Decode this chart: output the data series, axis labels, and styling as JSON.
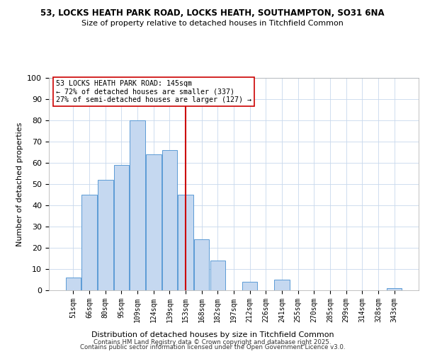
{
  "title1": "53, LOCKS HEATH PARK ROAD, LOCKS HEATH, SOUTHAMPTON, SO31 6NA",
  "title2": "Size of property relative to detached houses in Titchfield Common",
  "xlabel": "Distribution of detached houses by size in Titchfield Common",
  "ylabel": "Number of detached properties",
  "bar_labels": [
    "51sqm",
    "66sqm",
    "80sqm",
    "95sqm",
    "109sqm",
    "124sqm",
    "139sqm",
    "153sqm",
    "168sqm",
    "182sqm",
    "197sqm",
    "212sqm",
    "226sqm",
    "241sqm",
    "255sqm",
    "270sqm",
    "285sqm",
    "299sqm",
    "314sqm",
    "328sqm",
    "343sqm"
  ],
  "bar_heights": [
    6,
    45,
    52,
    59,
    80,
    64,
    66,
    45,
    24,
    14,
    0,
    4,
    0,
    5,
    0,
    0,
    0,
    0,
    0,
    0,
    1
  ],
  "bar_color": "#c5d8f0",
  "bar_edge_color": "#5b9bd5",
  "vline_x": 7,
  "vline_color": "#cc0000",
  "ylim": [
    0,
    100
  ],
  "yticks": [
    0,
    10,
    20,
    30,
    40,
    50,
    60,
    70,
    80,
    90,
    100
  ],
  "annotation_title": "53 LOCKS HEATH PARK ROAD: 145sqm",
  "annotation_line1": "← 72% of detached houses are smaller (337)",
  "annotation_line2": "27% of semi-detached houses are larger (127) →",
  "annotation_box_color": "#ffffff",
  "annotation_box_edge": "#cc0000",
  "footer1": "Contains HM Land Registry data © Crown copyright and database right 2025.",
  "footer2": "Contains public sector information licensed under the Open Government Licence v3.0.",
  "bg_color": "#ffffff",
  "grid_color": "#c8d8ec"
}
